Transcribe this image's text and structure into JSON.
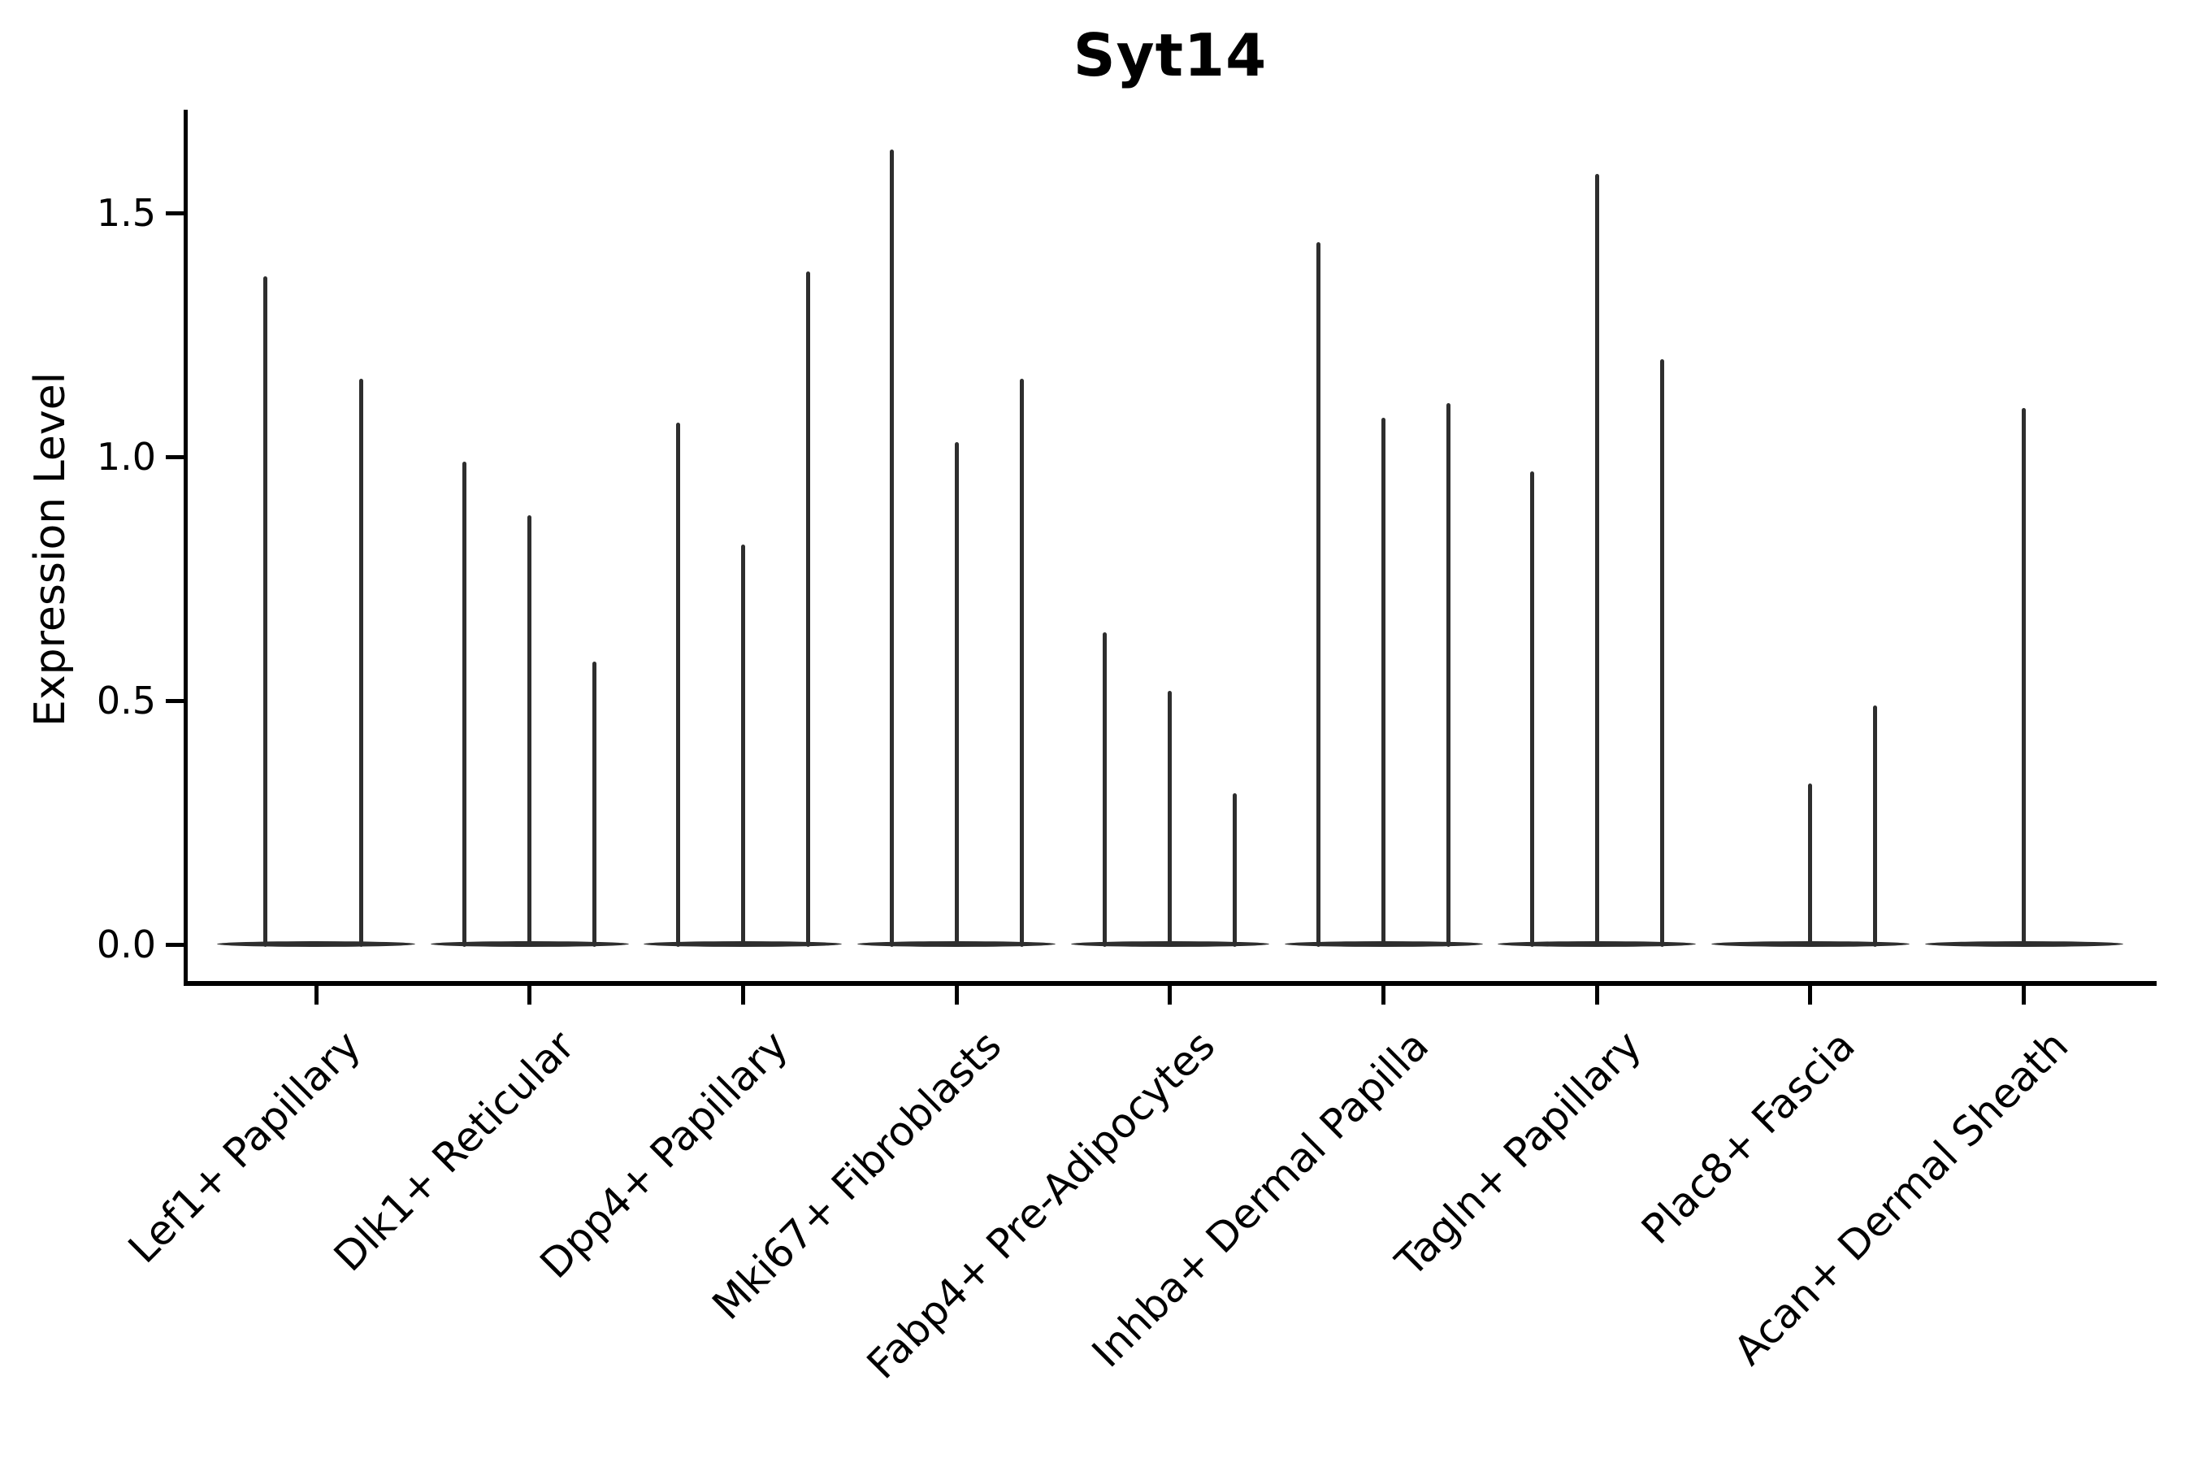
{
  "chart_data": {
    "type": "violin",
    "title": "Syt14",
    "xlabel": "",
    "ylabel": "Expression Level",
    "ytick_labels": [
      "0.0",
      "0.5",
      "1.0",
      "1.5"
    ],
    "ytick_values": [
      0.0,
      0.5,
      1.0,
      1.5
    ],
    "ylim": [
      -0.08,
      1.71
    ],
    "grid": false,
    "legend": "none",
    "style_note": "Seurat-style VlnPlot: sparse expression collapses violins to thin dark-gray vertical spikes over flat lens-shaped bases at y=0; only left and bottom spines drawn; x labels rotated 45 degrees",
    "categories": [
      "Lef1+ Papillary",
      "Dlk1+ Reticular",
      "Dpp4+ Papillary",
      "Mki67+ Fibroblasts",
      "Fabp4+ Pre-Adipocytes",
      "Inhba+ Dermal Papilla",
      "Tagln+ Papillary",
      "Plac8+ Fascia",
      "Acan+ Dermal Sheath"
    ],
    "groups": [
      {
        "category": "Lef1+ Papillary",
        "violins": [
          {
            "dx": -63,
            "peak": 1.37
          },
          {
            "dx": 55,
            "peak": 1.16
          }
        ]
      },
      {
        "category": "Dlk1+ Reticular",
        "violins": [
          {
            "dx": -80,
            "peak": 0.99
          },
          {
            "dx": 0,
            "peak": 0.88
          },
          {
            "dx": 80,
            "peak": 0.58
          }
        ]
      },
      {
        "category": "Dpp4+ Papillary",
        "violins": [
          {
            "dx": -80,
            "peak": 1.07
          },
          {
            "dx": 0,
            "peak": 0.82
          },
          {
            "dx": 80,
            "peak": 1.38
          }
        ]
      },
      {
        "category": "Mki67+ Fibroblasts",
        "violins": [
          {
            "dx": -80,
            "peak": 1.63
          },
          {
            "dx": 0,
            "peak": 1.03
          },
          {
            "dx": 80,
            "peak": 1.16
          }
        ]
      },
      {
        "category": "Fabp4+ Pre-Adipocytes",
        "violins": [
          {
            "dx": -80,
            "peak": 0.64
          },
          {
            "dx": 0,
            "peak": 0.52
          },
          {
            "dx": 80,
            "peak": 0.31
          }
        ]
      },
      {
        "category": "Inhba+ Dermal Papilla",
        "violins": [
          {
            "dx": -80,
            "peak": 1.44
          },
          {
            "dx": 0,
            "peak": 1.08
          },
          {
            "dx": 80,
            "peak": 1.11
          }
        ]
      },
      {
        "category": "Tagln+ Papillary",
        "violins": [
          {
            "dx": -80,
            "peak": 0.97
          },
          {
            "dx": 0,
            "peak": 1.58
          },
          {
            "dx": 80,
            "peak": 1.2
          }
        ]
      },
      {
        "category": "Plac8+ Fascia",
        "violins": [
          {
            "dx": 0,
            "peak": 0.33
          },
          {
            "dx": 80,
            "peak": 0.49
          }
        ]
      },
      {
        "category": "Acan+ Dermal Sheath",
        "violins": [
          {
            "dx": 0,
            "peak": 1.1
          }
        ]
      }
    ],
    "colors": {
      "violin": "#2e2e2e",
      "axis": "#000000",
      "text": "#000000",
      "background": "#ffffff"
    }
  }
}
